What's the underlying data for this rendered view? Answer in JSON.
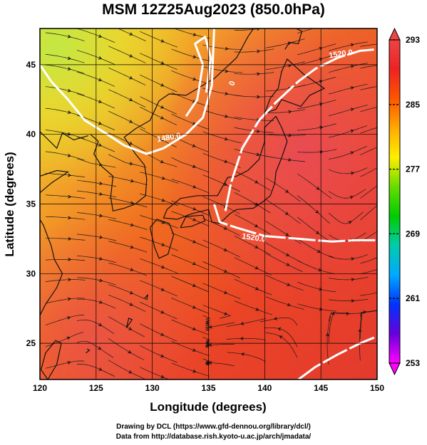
{
  "title": "MSM 12Z25Aug2023 (850.0hPa)",
  "map": {
    "x_axis": {
      "label": "Longitude (degrees)",
      "range": [
        120,
        150
      ],
      "ticks": [
        120,
        125,
        130,
        135,
        140,
        145,
        150
      ]
    },
    "y_axis": {
      "label": "Latitude  (degrees)",
      "range": [
        22.4,
        47.6
      ],
      "ticks": [
        25,
        30,
        35,
        40,
        45
      ]
    },
    "grid": true,
    "colorbar": {
      "ticks": [
        253,
        261,
        269,
        277,
        285,
        293
      ],
      "range": [
        253,
        293
      ],
      "colors": [
        "#ff00ff",
        "#6600dd",
        "#0033ff",
        "#00aaff",
        "#00ccaa",
        "#00cc00",
        "#66dd00",
        "#ffee00",
        "#ffaa00",
        "#ff5500",
        "#ee2222",
        "#ee4444"
      ]
    },
    "contours": [
      {
        "label": "1480.0"
      },
      {
        "label": "1520.0"
      },
      {
        "label": "1520.0"
      },
      {
        "label": "1520.0"
      }
    ],
    "wind_field": "streamlines"
  },
  "credits": [
    "Drawing by DCL (https://www.gfd-dennou.org/library/dcl/)",
    "Data from http://database.rish.kyoto-u.ac.jp/arch/jmadata/"
  ]
}
